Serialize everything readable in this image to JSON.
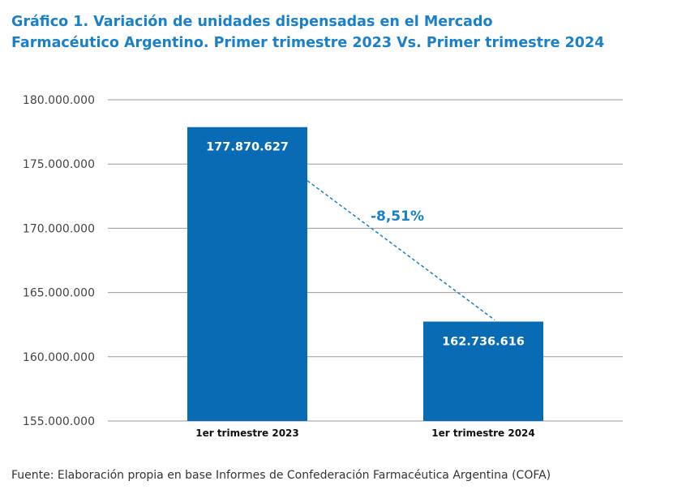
{
  "title_line1": "Gráfico 1. Variación de unidades dispensadas en el Mercado",
  "title_line2": "Farmacéutico Argentino. Primer trimestre 2023 Vs. Primer trimestre 2024",
  "source": "Fuente: Elaboración propia en base Informes de Confederación Farmacéutica Argentina (COFA)",
  "colors": {
    "title": "#1a80c7",
    "bar": "#0a6bb5",
    "grid": "#9a9a9a",
    "variation": "#1a80c7"
  },
  "chart_data": {
    "type": "bar",
    "categories": [
      "1er trimestre 2023",
      "1er trimestre 2024"
    ],
    "values": [
      177870627,
      162736616
    ],
    "value_labels": [
      "177.870.627",
      "162.736.616"
    ],
    "ylim": [
      155000000,
      180000000
    ],
    "yticks": [
      155000000,
      160000000,
      165000000,
      170000000,
      175000000,
      180000000
    ],
    "ytick_labels": [
      "155.000.000",
      "160.000.000",
      "165.000.000",
      "170.000.000",
      "175.000.000",
      "180.000.000"
    ],
    "grid": true,
    "legend": "none",
    "annotation": {
      "text": "-8,51%",
      "style": "dashed line connecting bar tops"
    }
  }
}
